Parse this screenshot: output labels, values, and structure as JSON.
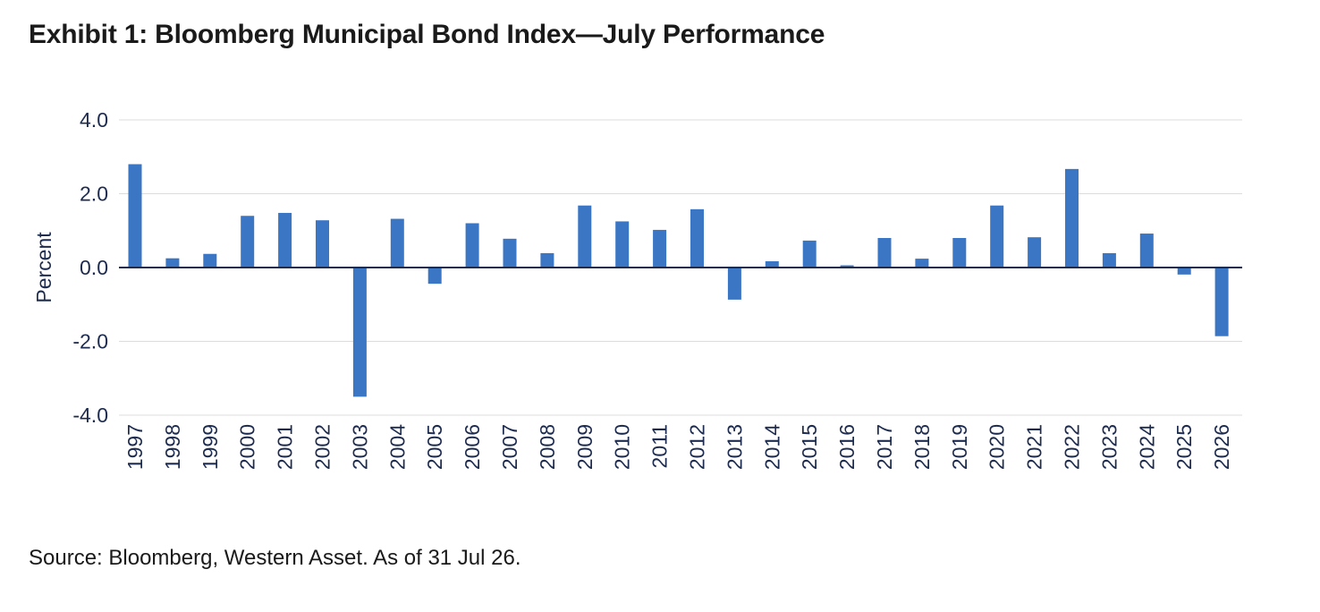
{
  "chart_data": {
    "type": "bar",
    "title": "Exhibit 1: Bloomberg Municipal Bond Index—July Performance",
    "ylabel": "Percent",
    "xlabel": "",
    "ylim": [
      -4,
      4
    ],
    "yticks": [
      4,
      2,
      0,
      -2,
      -4
    ],
    "ytick_labels": [
      "4.0",
      "2.0",
      "0.0",
      "-2.0",
      "-4.0"
    ],
    "grid": true,
    "legend": "none",
    "bar_color": "#3a76c4",
    "categories": [
      "1997",
      "1998",
      "1999",
      "2000",
      "2001",
      "2002",
      "2003",
      "2004",
      "2005",
      "2006",
      "2007",
      "2008",
      "2009",
      "2010",
      "2011",
      "2012",
      "2013",
      "2014",
      "2015",
      "2016",
      "2017",
      "2018",
      "2019",
      "2020",
      "2021",
      "2022",
      "2023",
      "2024",
      "2025",
      "2026"
    ],
    "values": [
      2.8,
      0.25,
      0.37,
      1.4,
      1.48,
      1.28,
      -3.5,
      1.32,
      -0.44,
      1.2,
      0.78,
      0.39,
      1.68,
      1.25,
      1.02,
      1.58,
      -0.87,
      0.17,
      0.73,
      0.06,
      0.8,
      0.24,
      0.8,
      1.68,
      0.82,
      2.67,
      0.39,
      0.92,
      -0.19,
      -1.86
    ]
  },
  "source": "Source: Bloomberg, Western Asset. As of 31 Jul 26."
}
